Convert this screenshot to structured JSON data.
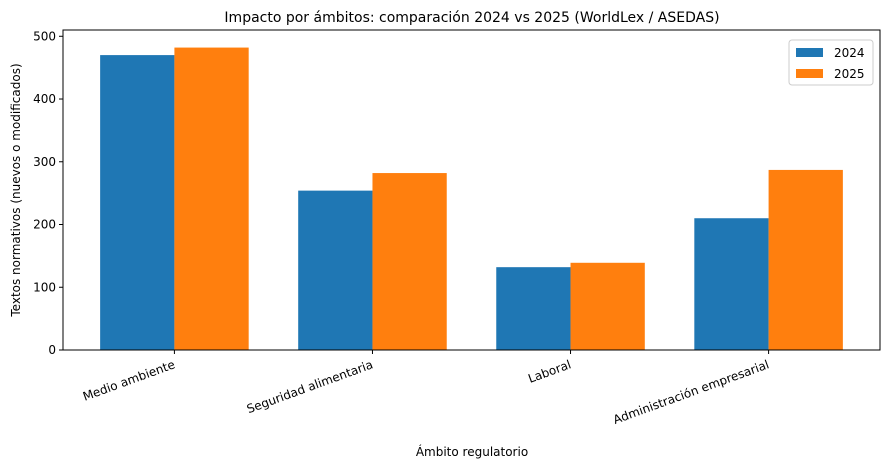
{
  "chart_data": {
    "type": "bar",
    "title": "Impacto por ámbitos: comparación 2024 vs 2025 (WorldLex / ASEDAS)",
    "xlabel": "Ámbito regulatorio",
    "ylabel": "Textos normativos (nuevos o modificados)",
    "categories": [
      "Medio ambiente",
      "Seguridad alimentaria",
      "Laboral",
      "Administración empresarial"
    ],
    "series": [
      {
        "name": "2024",
        "color": "#1f77b4",
        "values": [
          470,
          254,
          132,
          210
        ]
      },
      {
        "name": "2025",
        "color": "#ff7f0e",
        "values": [
          482,
          282,
          139,
          287
        ]
      }
    ],
    "ylim": [
      0,
      510
    ],
    "yticks": [
      0,
      100,
      200,
      300,
      400,
      500
    ],
    "grid": false,
    "legend": "top-right"
  }
}
